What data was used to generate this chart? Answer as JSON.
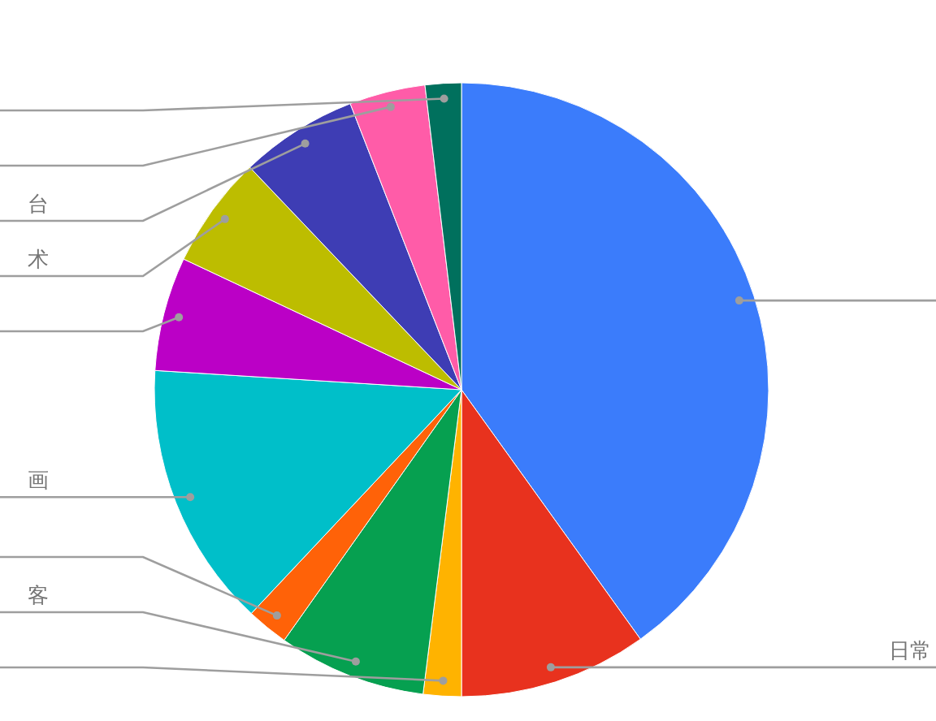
{
  "chart_data": {
    "type": "pie",
    "categories": [
      null,
      "日常",
      null,
      "客",
      null,
      "画",
      null,
      "术",
      "台",
      null,
      null
    ],
    "values": [
      40.1,
      9.9,
      2.0,
      7.8,
      2.2,
      14.0,
      6.0,
      5.9,
      6.2,
      4.0,
      1.9
    ],
    "colors": [
      "#3b7cfb",
      "#e8321e",
      "#ffb300",
      "#06a050",
      "#ff6208",
      "#00bfc9",
      "#bb00c6",
      "#bdbd00",
      "#3e3db4",
      "#ff5ca8",
      "#00705d"
    ]
  }
}
